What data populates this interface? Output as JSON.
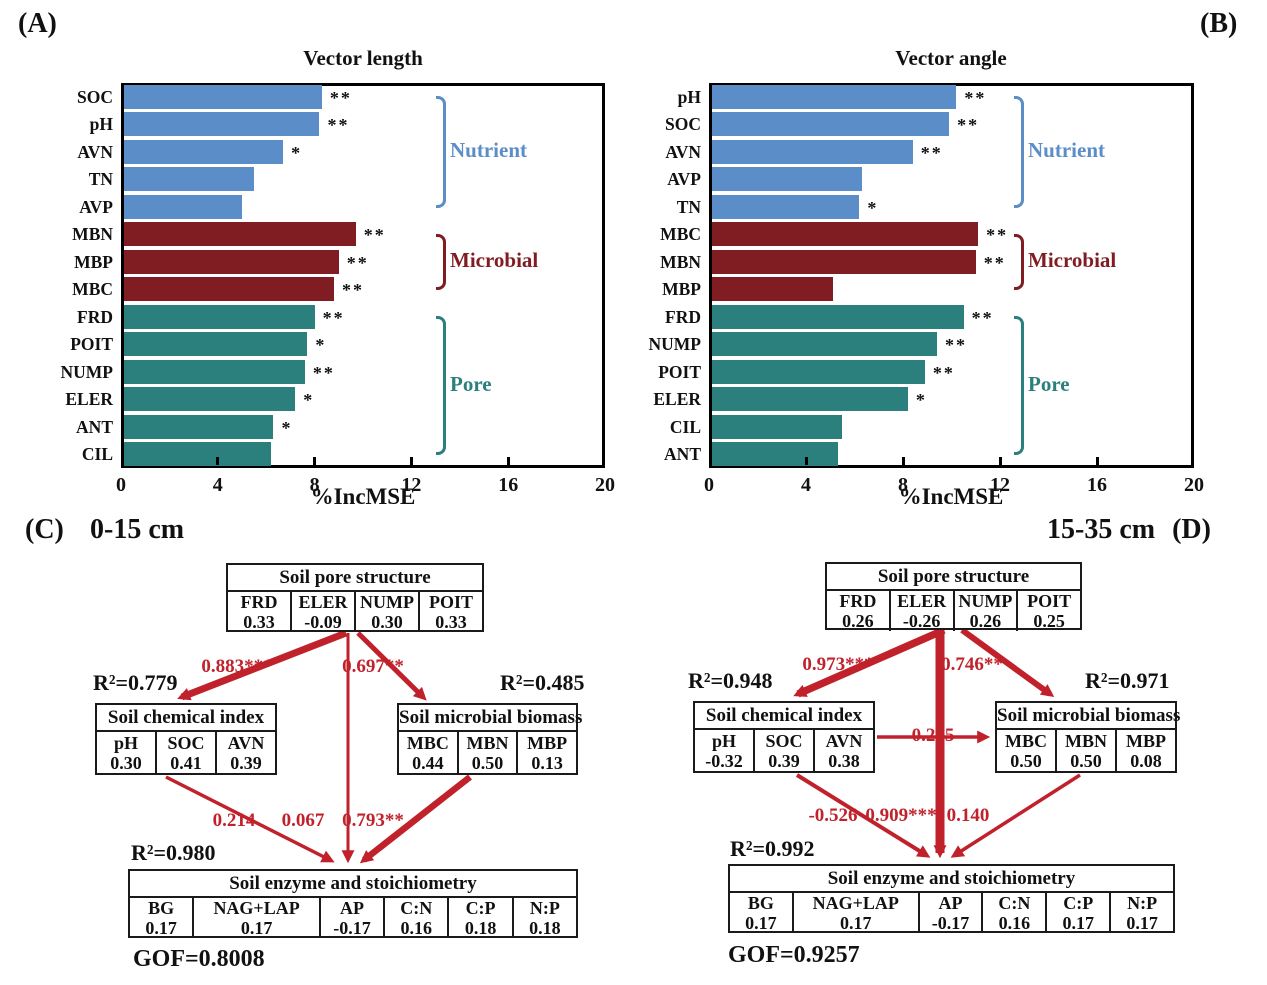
{
  "panels": {
    "a_label": "(A)",
    "b_label": "(B)",
    "c_label": "(C)",
    "d_label": "(D)",
    "c_depth": "0-15 cm",
    "d_depth": "15-35 cm"
  },
  "colors": {
    "nutrient": "#5b8dc8",
    "microbial": "#7f1d23",
    "pore": "#2b7f7c",
    "arrow": "#c0212b",
    "frame": "#000000"
  },
  "chart_data": [
    {
      "type": "bar",
      "orientation": "horizontal",
      "title": "Vector length",
      "xlabel": "%IncMSE",
      "xlim": [
        0,
        20
      ],
      "xticks": [
        0,
        4,
        8,
        12,
        16,
        20
      ],
      "grid": false,
      "bars": [
        {
          "label": "SOC",
          "value": 8.3,
          "sig": "**",
          "group": "nutrient"
        },
        {
          "label": "pH",
          "value": 8.2,
          "sig": "**",
          "group": "nutrient"
        },
        {
          "label": "AVN",
          "value": 6.7,
          "sig": "*",
          "group": "nutrient"
        },
        {
          "label": "TN",
          "value": 5.5,
          "sig": "",
          "group": "nutrient"
        },
        {
          "label": "AVP",
          "value": 5.0,
          "sig": "",
          "group": "nutrient"
        },
        {
          "label": "MBN",
          "value": 9.7,
          "sig": "**",
          "group": "microbial"
        },
        {
          "label": "MBP",
          "value": 9.0,
          "sig": "**",
          "group": "microbial"
        },
        {
          "label": "MBC",
          "value": 8.8,
          "sig": "**",
          "group": "microbial"
        },
        {
          "label": "FRD",
          "value": 8.0,
          "sig": "**",
          "group": "pore"
        },
        {
          "label": "POIT",
          "value": 7.7,
          "sig": "*",
          "group": "pore"
        },
        {
          "label": "NUMP",
          "value": 7.6,
          "sig": "**",
          "group": "pore"
        },
        {
          "label": "ELER",
          "value": 7.2,
          "sig": "*",
          "group": "pore"
        },
        {
          "label": "ANT",
          "value": 6.3,
          "sig": "*",
          "group": "pore"
        },
        {
          "label": "CIL",
          "value": 6.2,
          "sig": "",
          "group": "pore"
        }
      ],
      "group_brackets": [
        {
          "label": "Nutrient",
          "group": "nutrient",
          "from": 0,
          "to": 4
        },
        {
          "label": "Microbial",
          "group": "microbial",
          "from": 5,
          "to": 7
        },
        {
          "label": "Pore",
          "group": "pore",
          "from": 8,
          "to": 13
        }
      ]
    },
    {
      "type": "bar",
      "orientation": "horizontal",
      "title": "Vector angle",
      "xlabel": "%IncMSE",
      "xlim": [
        0,
        20
      ],
      "xticks": [
        0,
        4,
        8,
        12,
        16,
        20
      ],
      "grid": false,
      "bars": [
        {
          "label": "pH",
          "value": 10.2,
          "sig": "**",
          "group": "nutrient"
        },
        {
          "label": "SOC",
          "value": 9.9,
          "sig": "**",
          "group": "nutrient"
        },
        {
          "label": "AVN",
          "value": 8.4,
          "sig": "**",
          "group": "nutrient"
        },
        {
          "label": "AVP",
          "value": 6.3,
          "sig": "",
          "group": "nutrient"
        },
        {
          "label": "TN",
          "value": 6.2,
          "sig": "*",
          "group": "nutrient"
        },
        {
          "label": "MBC",
          "value": 11.1,
          "sig": "**",
          "group": "microbial"
        },
        {
          "label": "MBN",
          "value": 11.0,
          "sig": "**",
          "group": "microbial"
        },
        {
          "label": "MBP",
          "value": 5.1,
          "sig": "",
          "group": "microbial"
        },
        {
          "label": "FRD",
          "value": 10.5,
          "sig": "**",
          "group": "pore"
        },
        {
          "label": "NUMP",
          "value": 9.4,
          "sig": "**",
          "group": "pore"
        },
        {
          "label": "POIT",
          "value": 8.9,
          "sig": "**",
          "group": "pore"
        },
        {
          "label": "ELER",
          "value": 8.2,
          "sig": "*",
          "group": "pore"
        },
        {
          "label": "CIL",
          "value": 5.5,
          "sig": "",
          "group": "pore"
        },
        {
          "label": "ANT",
          "value": 5.3,
          "sig": "",
          "group": "pore"
        }
      ],
      "group_brackets": [
        {
          "label": "Nutrient",
          "group": "nutrient",
          "from": 0,
          "to": 4
        },
        {
          "label": "Microbial",
          "group": "microbial",
          "from": 5,
          "to": 7
        },
        {
          "label": "Pore",
          "group": "pore",
          "from": 8,
          "to": 13
        }
      ]
    }
  ],
  "sem": [
    {
      "panel": "C",
      "gof": "GOF=0.8008",
      "boxes": {
        "pore": {
          "title": "Soil pore structure",
          "cells": [
            [
              "FRD",
              "0.33"
            ],
            [
              "ELER",
              "-0.09"
            ],
            [
              "NUMP",
              "0.30"
            ],
            [
              "POIT",
              "0.33"
            ]
          ]
        },
        "chemical": {
          "title": "Soil chemical index",
          "r2": "R²=0.779",
          "cells": [
            [
              "pH",
              "0.30"
            ],
            [
              "SOC",
              "0.41"
            ],
            [
              "AVN",
              "0.39"
            ]
          ]
        },
        "microbial": {
          "title": "Soil microbial biomass",
          "r2": "R²=0.485",
          "cells": [
            [
              "MBC",
              "0.44"
            ],
            [
              "MBN",
              "0.50"
            ],
            [
              "MBP",
              "0.13"
            ]
          ]
        },
        "enzyme": {
          "title": "Soil enzyme and stoichiometry",
          "r2": "R²=0.980",
          "cells": [
            [
              "BG",
              "0.17"
            ],
            [
              "NAG+LAP",
              "0.17"
            ],
            [
              "AP",
              "-0.17"
            ],
            [
              "C:N",
              "0.16"
            ],
            [
              "C:P",
              "0.18"
            ],
            [
              "N:P",
              "0.18"
            ]
          ]
        }
      },
      "paths": [
        {
          "from": "pore",
          "to": "chemical",
          "label": "0.883***"
        },
        {
          "from": "pore",
          "to": "microbial",
          "label": "0.697**"
        },
        {
          "from": "chemical",
          "to": "enzyme",
          "label": "0.214"
        },
        {
          "from": "pore",
          "to": "enzyme",
          "label": "0.067"
        },
        {
          "from": "microbial",
          "to": "enzyme",
          "label": "0.793**"
        }
      ]
    },
    {
      "panel": "D",
      "gof": "GOF=0.9257",
      "boxes": {
        "pore": {
          "title": "Soil pore structure",
          "cells": [
            [
              "FRD",
              "0.26"
            ],
            [
              "ELER",
              "-0.26"
            ],
            [
              "NUMP",
              "0.26"
            ],
            [
              "POIT",
              "0.25"
            ]
          ]
        },
        "chemical": {
          "title": "Soil chemical index",
          "r2": "R²=0.948",
          "cells": [
            [
              "pH",
              "-0.32"
            ],
            [
              "SOC",
              "0.39"
            ],
            [
              "AVN",
              "0.38"
            ]
          ]
        },
        "microbial": {
          "title": "Soil microbial biomass",
          "r2": "R²=0.971",
          "cells": [
            [
              "MBC",
              "0.50"
            ],
            [
              "MBN",
              "0.50"
            ],
            [
              "MBP",
              "0.08"
            ]
          ]
        },
        "enzyme": {
          "title": "Soil enzyme and stoichiometry",
          "r2": "R²=0.992",
          "cells": [
            [
              "BG",
              "0.17"
            ],
            [
              "NAG+LAP",
              "0.17"
            ],
            [
              "AP",
              "-0.17"
            ],
            [
              "C:N",
              "0.16"
            ],
            [
              "C:P",
              "0.17"
            ],
            [
              "N:P",
              "0.17"
            ]
          ]
        }
      },
      "paths": [
        {
          "from": "pore",
          "to": "chemical",
          "label": "0.973***"
        },
        {
          "from": "pore",
          "to": "microbial",
          "label": "0.746**"
        },
        {
          "from": "chemical",
          "to": "microbial",
          "label": "0.245"
        },
        {
          "from": "chemical",
          "to": "enzyme",
          "label": "-0.526"
        },
        {
          "from": "pore",
          "to": "enzyme",
          "label": "0.909***"
        },
        {
          "from": "microbial",
          "to": "enzyme",
          "label": "0.140"
        }
      ]
    }
  ]
}
